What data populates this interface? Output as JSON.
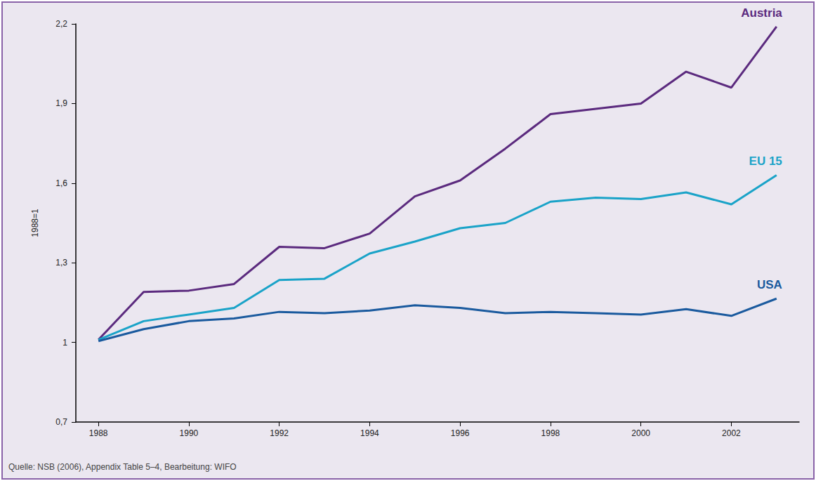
{
  "chart_data": {
    "type": "line",
    "y_label": "1988=1",
    "source": "Quelle: NSB (2006), Appendix Table 5–4, Bearbeitung: WIFO",
    "x": [
      1988,
      1989,
      1990,
      1991,
      1992,
      1993,
      1994,
      1995,
      1996,
      1997,
      1998,
      1999,
      2000,
      2001,
      2002,
      2003
    ],
    "series": [
      {
        "name": "Austria",
        "color": "#5b2a7e",
        "values": [
          1.01,
          1.19,
          1.195,
          1.22,
          1.36,
          1.355,
          1.41,
          1.55,
          1.61,
          1.73,
          1.86,
          1.88,
          1.9,
          2.02,
          1.96,
          2.19
        ]
      },
      {
        "name": "EU 15",
        "color": "#1aa3c8",
        "values": [
          1.01,
          1.08,
          1.105,
          1.13,
          1.235,
          1.24,
          1.335,
          1.38,
          1.43,
          1.45,
          1.53,
          1.545,
          1.54,
          1.565,
          1.52,
          1.63
        ]
      },
      {
        "name": "USA",
        "color": "#1a5a9e",
        "values": [
          1.005,
          1.05,
          1.08,
          1.09,
          1.115,
          1.11,
          1.12,
          1.14,
          1.13,
          1.11,
          1.115,
          1.11,
          1.105,
          1.125,
          1.1,
          1.165
        ]
      }
    ],
    "xlim": [
      1987.5,
      2003.5
    ],
    "xticks": [
      1988,
      1990,
      1992,
      1994,
      1996,
      1998,
      2000,
      2002
    ],
    "ylim": [
      0.7,
      2.2
    ],
    "yticks": [
      {
        "value": 0.7,
        "label": "0,7"
      },
      1,
      {
        "value": 1.3,
        "label": "1,3"
      },
      {
        "value": 1.6,
        "label": "1,6"
      },
      {
        "value": 1.9,
        "label": "1,9"
      },
      {
        "value": 2.2,
        "label": "2,2"
      }
    ],
    "grid": false
  }
}
